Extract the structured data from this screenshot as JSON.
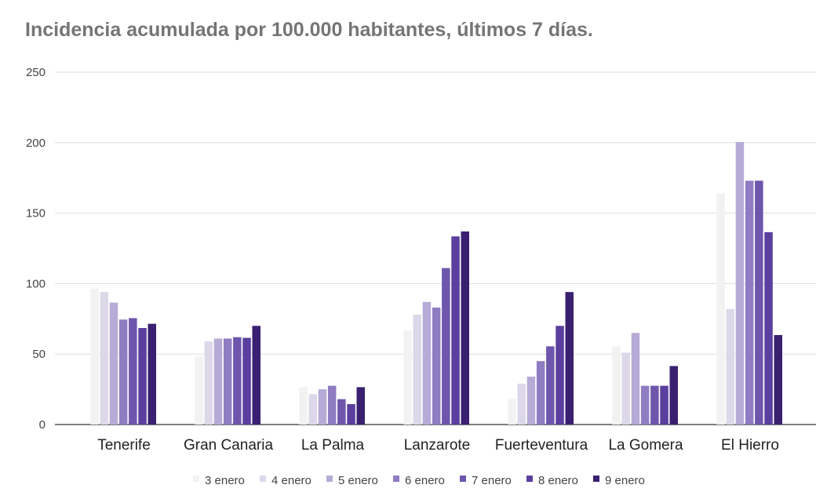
{
  "chart_data": {
    "type": "bar",
    "title": "Incidencia acumulada por 100.000 habitantes, últimos 7 días.",
    "xlabel": "",
    "ylabel": "",
    "ylim": [
      0,
      250
    ],
    "yticks": [
      0,
      50,
      100,
      150,
      200,
      250
    ],
    "grid": true,
    "legend_position": "bottom",
    "categories": [
      "Tenerife",
      "Gran Canaria",
      "La Palma",
      "Lanzarote",
      "Fuerteventura",
      "La Gomera",
      "El Hierro"
    ],
    "series": [
      {
        "name": "3 enero",
        "color": "#f2f2f2",
        "values": [
          96.5,
          48.5,
          26.5,
          66.5,
          18,
          55.5,
          164
        ]
      },
      {
        "name": "4 enero",
        "color": "#dcd8ea",
        "values": [
          94,
          59,
          21.5,
          78,
          29,
          51,
          82
        ]
      },
      {
        "name": "5 enero",
        "color": "#b6abd6",
        "values": [
          86.5,
          61,
          25,
          87,
          34,
          65,
          200.5
        ]
      },
      {
        "name": "6 enero",
        "color": "#8f7cc2",
        "values": [
          74.5,
          61,
          27.5,
          83,
          45,
          27.5,
          173
        ]
      },
      {
        "name": "7 enero",
        "color": "#6e56ad",
        "values": [
          75.5,
          62,
          18,
          111,
          55.5,
          27.5,
          173
        ]
      },
      {
        "name": "8 enero",
        "color": "#5a3f9e",
        "values": [
          68.5,
          61.5,
          14.5,
          133.5,
          70,
          27.5,
          136.5
        ]
      },
      {
        "name": "9 enero",
        "color": "#3a2070",
        "values": [
          71.5,
          70,
          26.5,
          137,
          94,
          41.5,
          63.5
        ]
      }
    ]
  }
}
